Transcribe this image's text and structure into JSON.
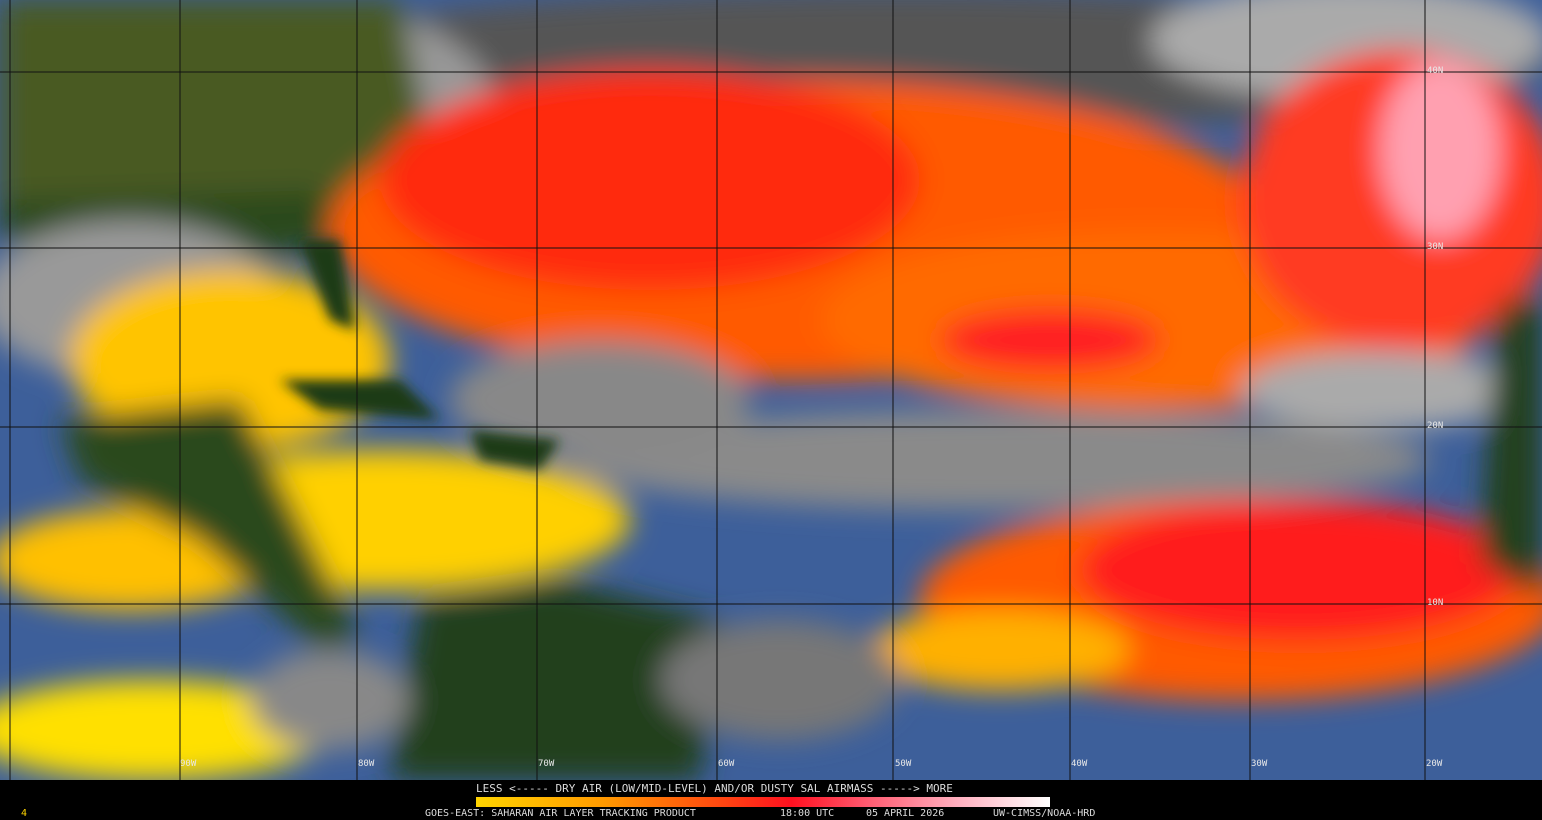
{
  "map": {
    "product": "GOES-EAST: SAHARAN AIR LAYER TRACKING PRODUCT",
    "colors": {
      "ocean": "#3d5f9a",
      "land": "#1f3a14",
      "dry_low": "#ffd400",
      "dry_mid": "#ff6a00",
      "dry_high": "#ff1a1a",
      "dry_max": "#ffc0cc",
      "cloud": "#9a9a9a"
    },
    "lat_labels": [
      "40N",
      "30N",
      "20N",
      "10N"
    ],
    "lon_labels": [
      "90W",
      "80W",
      "70W",
      "60W",
      "50W",
      "40W",
      "30W",
      "20W"
    ]
  },
  "legend": {
    "scale_text": "LESS <----- DRY AIR (LOW/MID-LEVEL) AND/OR DUSTY SAL AIRMASS -----> MORE",
    "product": "GOES-EAST: SAHARAN AIR LAYER TRACKING PRODUCT",
    "time": "18:00 UTC",
    "date": "05 APRIL 2026",
    "credit": "UW-CIMSS/NOAA-HRD",
    "corner": "4"
  }
}
